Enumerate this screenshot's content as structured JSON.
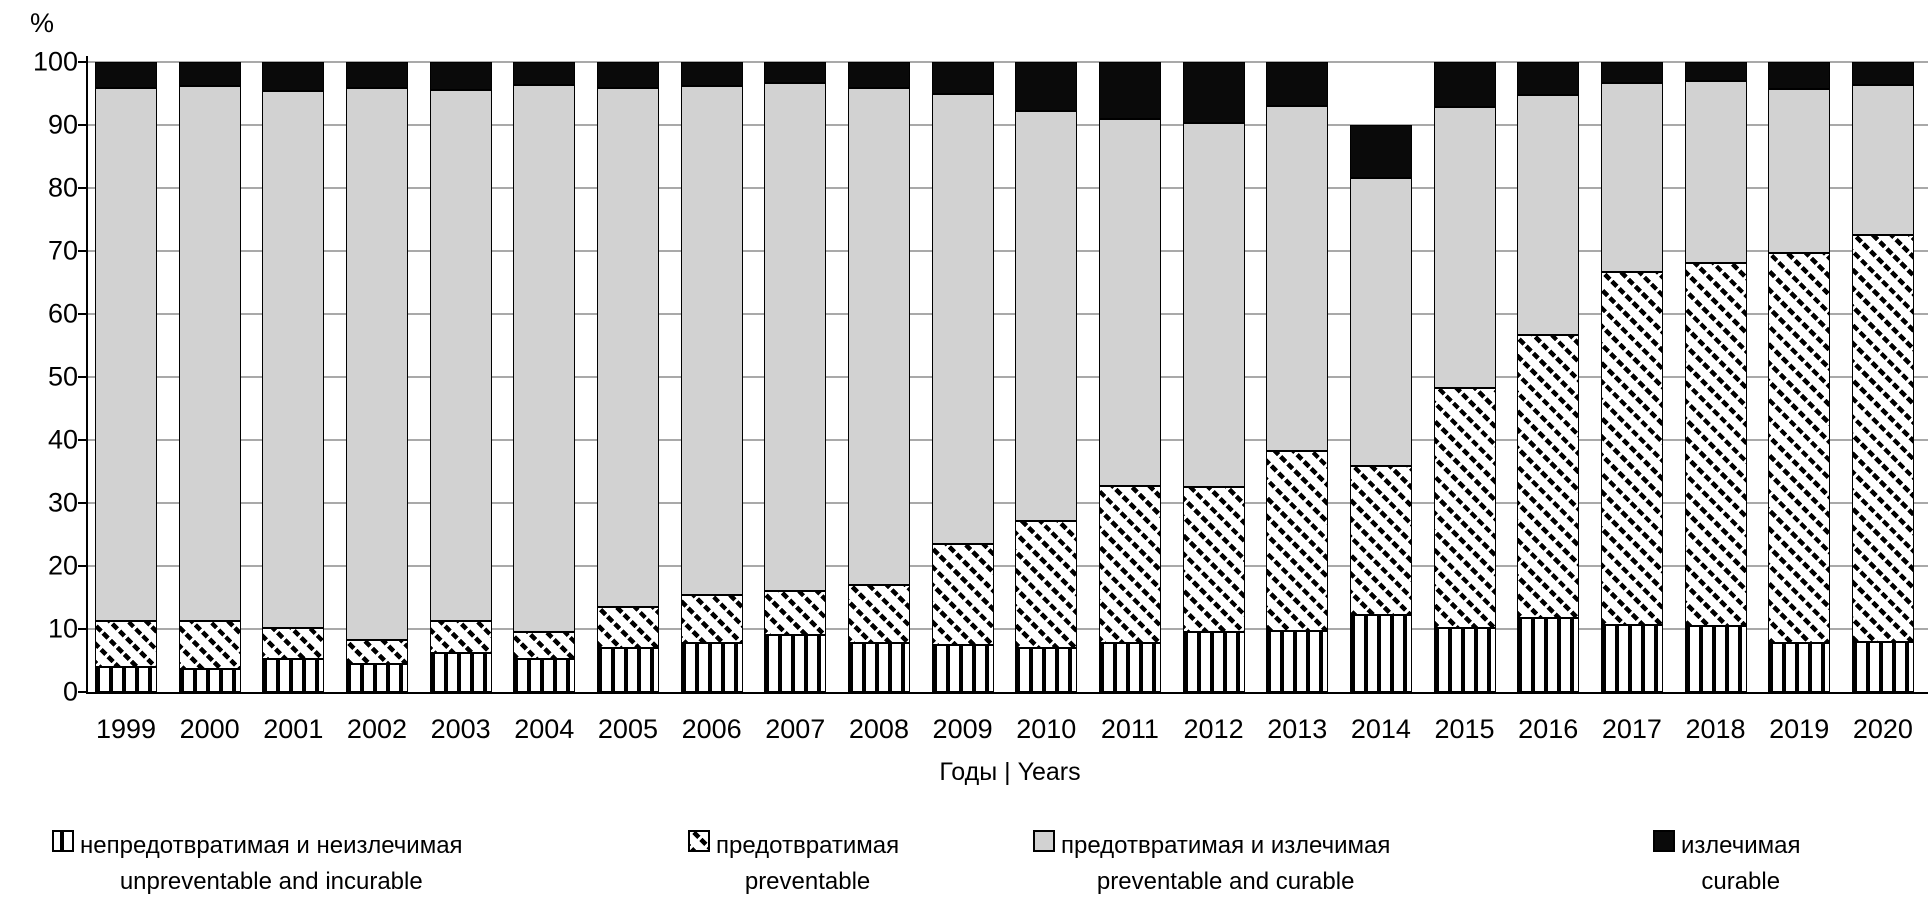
{
  "y_axis": {
    "unit_label": "%",
    "ticks": [
      100,
      90,
      80,
      70,
      60,
      50,
      40,
      30,
      20,
      10,
      0
    ],
    "min": 0,
    "max": 100
  },
  "x_axis": {
    "title": "Годы | Years"
  },
  "colors": {
    "gray_fill": "#d2d2d2",
    "black_fill": "#0a0a0a",
    "gridline": "#a9a9a9",
    "axis": "#000000"
  },
  "legend": [
    {
      "ru": "непредотвратимая и неизлечимая",
      "en": "unpreventable and incurable",
      "pattern": "vertical-stripes"
    },
    {
      "ru": "предотвратимая",
      "en": "preventable",
      "pattern": "diagonal-hatch"
    },
    {
      "ru": "предотвратимая и излечимая",
      "en": "preventable and curable",
      "pattern": "solid-gray"
    },
    {
      "ru": "излечимая",
      "en": "curable",
      "pattern": "solid-black"
    }
  ],
  "chart_data": {
    "type": "bar",
    "stacked": true,
    "title": "",
    "xlabel": "Годы | Years",
    "ylabel": "%",
    "ylim": [
      0,
      100
    ],
    "grid": true,
    "legend_position": "bottom",
    "categories": [
      1999,
      2000,
      2001,
      2002,
      2003,
      2004,
      2005,
      2006,
      2007,
      2008,
      2009,
      2010,
      2011,
      2012,
      2013,
      2014,
      2015,
      2016,
      2017,
      2018,
      2019,
      2020
    ],
    "series": [
      {
        "name_ru": "непредотвратимая и неизлечимая",
        "name_en": "unpreventable and incurable",
        "pattern": "vertical-stripes",
        "values": [
          3.9,
          3.7,
          5.2,
          4.4,
          6.2,
          5.3,
          7.0,
          7.8,
          9.1,
          7.8,
          7.5,
          7.0,
          7.8,
          9.6,
          9.7,
          12.2,
          10.2,
          11.8,
          10.7,
          10.5,
          7.8,
          8.0
        ]
      },
      {
        "name_ru": "предотвратимая",
        "name_en": "preventable",
        "pattern": "diagonal-hatch",
        "values": [
          7.3,
          7.6,
          5.0,
          3.9,
          5.1,
          4.3,
          6.5,
          7.6,
          7.0,
          9.2,
          16.0,
          20.2,
          24.9,
          23.0,
          28.6,
          23.7,
          38.1,
          44.8,
          55.9,
          57.6,
          61.9,
          64.6
        ]
      },
      {
        "name_ru": "предотвратимая и излечимая",
        "name_en": "preventable and curable",
        "pattern": "solid-gray",
        "values": [
          84.6,
          84.9,
          85.2,
          87.5,
          84.3,
          86.7,
          82.3,
          80.8,
          80.6,
          78.8,
          71.4,
          65.1,
          58.2,
          57.7,
          54.7,
          45.7,
          44.6,
          38.1,
          30.0,
          28.9,
          26.0,
          23.8
        ]
      },
      {
        "name_ru": "излечимая",
        "name_en": "curable",
        "pattern": "solid-black",
        "values": [
          4.2,
          3.8,
          4.6,
          4.2,
          4.4,
          3.7,
          4.2,
          3.8,
          3.3,
          4.2,
          5.1,
          7.7,
          9.1,
          9.7,
          7.0,
          8.4,
          7.1,
          5.3,
          3.4,
          3.0,
          4.3,
          3.6
        ]
      }
    ]
  }
}
